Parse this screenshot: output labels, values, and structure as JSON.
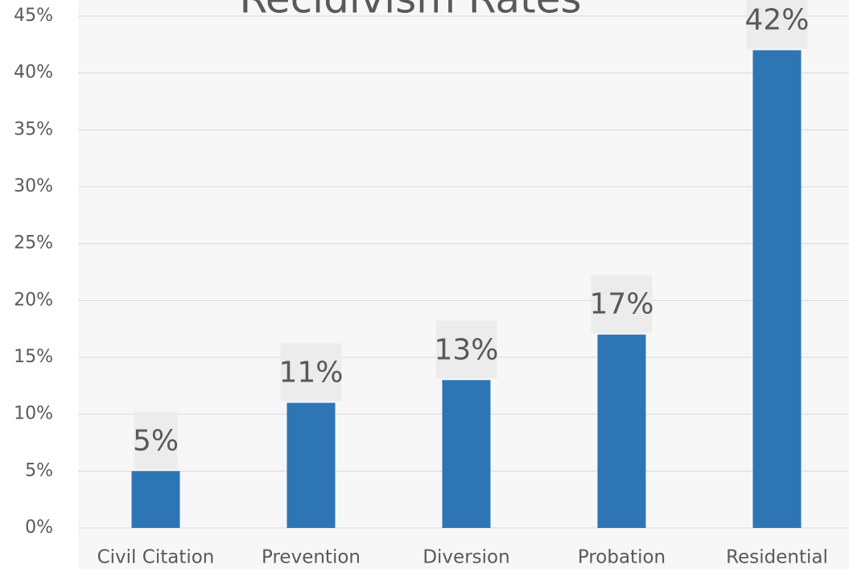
{
  "chart_data": {
    "type": "bar",
    "title": "Recidivism Rates",
    "categories": [
      "Civil Citation",
      "Prevention",
      "Diversion",
      "Probation",
      "Residential"
    ],
    "values": [
      5,
      11,
      13,
      17,
      42
    ],
    "value_labels": [
      "5%",
      "11%",
      "13%",
      "17%",
      "42%"
    ],
    "color": "#2e75b6",
    "ylim": [
      0,
      45
    ],
    "yticks": [
      {
        "value": 0,
        "label": "0%"
      },
      {
        "value": 5,
        "label": "5%"
      },
      {
        "value": 10,
        "label": "10%"
      },
      {
        "value": 15,
        "label": "15%"
      },
      {
        "value": 20,
        "label": "20%"
      },
      {
        "value": 25,
        "label": "25%"
      },
      {
        "value": 30,
        "label": "30%"
      },
      {
        "value": 35,
        "label": "35%"
      },
      {
        "value": 40,
        "label": "40%"
      },
      {
        "value": 45,
        "label": "45%"
      }
    ],
    "grid": true
  }
}
